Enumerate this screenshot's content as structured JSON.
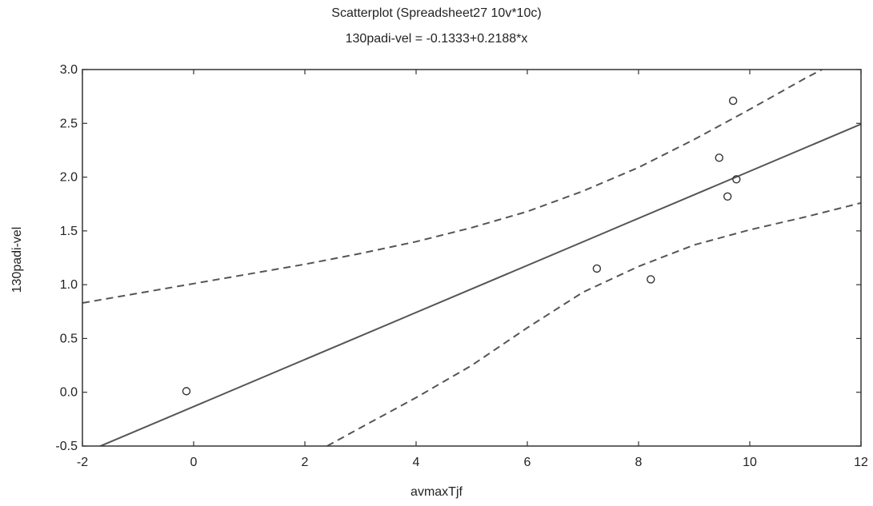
{
  "chart_data": {
    "type": "scatter",
    "title": "Scatterplot (Spreadsheet27 10v*10c)",
    "subtitle": "130padi-vel = -0.1333+0.2188*x",
    "xlabel": "avmaxTjf",
    "ylabel": "130padi-vel",
    "xlim": [
      -2,
      12
    ],
    "ylim": [
      -0.5,
      3.0
    ],
    "xticks": [
      "-2",
      "0",
      "2",
      "4",
      "6",
      "8",
      "10",
      "12"
    ],
    "yticks": [
      "-0.5",
      "0.0",
      "0.5",
      "1.0",
      "1.5",
      "2.0",
      "2.5",
      "3.0"
    ],
    "grid": false,
    "legend": "none",
    "points": [
      {
        "x": -0.13,
        "y": 0.01
      },
      {
        "x": 7.25,
        "y": 1.15
      },
      {
        "x": 8.22,
        "y": 1.05
      },
      {
        "x": 9.45,
        "y": 2.18
      },
      {
        "x": 9.6,
        "y": 1.82
      },
      {
        "x": 9.7,
        "y": 2.71
      },
      {
        "x": 9.76,
        "y": 1.98
      }
    ],
    "fit": {
      "intercept": -0.1333,
      "slope": 0.2188
    },
    "confidence_band": {
      "upper": [
        {
          "x": -2,
          "y": 0.83
        },
        {
          "x": -1,
          "y": 0.92
        },
        {
          "x": 0,
          "y": 1.01
        },
        {
          "x": 1,
          "y": 1.1
        },
        {
          "x": 2,
          "y": 1.19
        },
        {
          "x": 3,
          "y": 1.29
        },
        {
          "x": 4,
          "y": 1.4
        },
        {
          "x": 5,
          "y": 1.53
        },
        {
          "x": 6,
          "y": 1.68
        },
        {
          "x": 7,
          "y": 1.87
        },
        {
          "x": 8,
          "y": 2.09
        },
        {
          "x": 9,
          "y": 2.35
        },
        {
          "x": 10,
          "y": 2.63
        },
        {
          "x": 11,
          "y": 2.92
        },
        {
          "x": 11.3,
          "y": 3.0
        }
      ],
      "lower": [
        {
          "x": 2.4,
          "y": -0.5
        },
        {
          "x": 3,
          "y": -0.33
        },
        {
          "x": 4,
          "y": -0.05
        },
        {
          "x": 5,
          "y": 0.25
        },
        {
          "x": 6,
          "y": 0.6
        },
        {
          "x": 7,
          "y": 0.93
        },
        {
          "x": 8,
          "y": 1.17
        },
        {
          "x": 9,
          "y": 1.37
        },
        {
          "x": 10,
          "y": 1.51
        },
        {
          "x": 11,
          "y": 1.63
        },
        {
          "x": 12,
          "y": 1.76
        }
      ]
    },
    "colors": {
      "axis": "#333333",
      "line": "#555555",
      "marker": "#333333"
    }
  }
}
